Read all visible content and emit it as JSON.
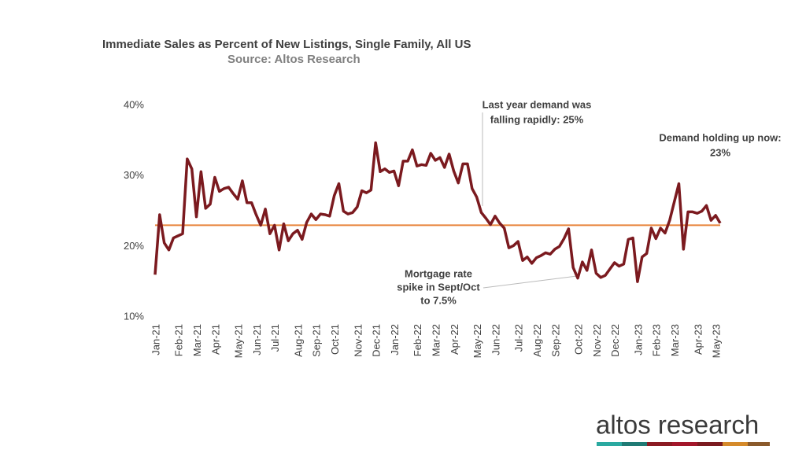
{
  "chart_data": {
    "type": "line",
    "title": "Immediate Sales as Percent of New Listings, Single Family, All US",
    "subtitle": "Source: Altos Research",
    "categories": [
      "Jan-21",
      null,
      null,
      null,
      null,
      "Feb-21",
      null,
      null,
      null,
      "Mar-21",
      null,
      null,
      null,
      "Apr-21",
      null,
      null,
      null,
      null,
      "May-21",
      null,
      null,
      null,
      "Jun-21",
      null,
      null,
      null,
      "Jul-21",
      null,
      null,
      null,
      null,
      "Aug-21",
      null,
      null,
      null,
      "Sep-21",
      null,
      null,
      null,
      "Oct-21",
      null,
      null,
      null,
      null,
      "Nov-21",
      null,
      null,
      null,
      "Dec-21",
      null,
      null,
      null,
      "Jan-22",
      null,
      null,
      null,
      null,
      "Feb-22",
      null,
      null,
      null,
      "Mar-22",
      null,
      null,
      null,
      "Apr-22",
      null,
      null,
      null,
      null,
      "May-22",
      null,
      null,
      null,
      "Jun-22",
      null,
      null,
      null,
      null,
      "Jul-22",
      null,
      null,
      null,
      "Aug-22",
      null,
      null,
      null,
      "Sep-22",
      null,
      null,
      null,
      null,
      "Oct-22",
      null,
      null,
      null,
      "Nov-22",
      null,
      null,
      null,
      "Dec-22",
      null,
      null,
      null,
      null,
      "Jan-23",
      null,
      null,
      null,
      "Feb-23",
      null,
      null,
      null,
      "Mar-23",
      null,
      null,
      null,
      null,
      "Apr-23",
      null,
      null,
      null,
      "May-23",
      null
    ],
    "values": [
      16,
      24.5,
      20.5,
      19.5,
      21.2,
      21.5,
      21.8,
      32.4,
      31,
      24.2,
      30.6,
      25.4,
      26,
      29.8,
      27.8,
      28.2,
      28.4,
      27.5,
      26.7,
      29.3,
      26.2,
      26.2,
      24.5,
      23,
      25.3,
      21.8,
      23,
      19.5,
      23.2,
      20.8,
      21.8,
      22.3,
      21,
      23.4,
      24.6,
      23.8,
      24.6,
      24.5,
      24.3,
      27.2,
      28.9,
      25,
      24.6,
      24.8,
      25.6,
      27.9,
      27.6,
      28,
      34.7,
      30.6,
      31,
      30.5,
      30.7,
      28.6,
      32.1,
      32.1,
      33.7,
      31.4,
      31.6,
      31.5,
      33.2,
      32.2,
      32.6,
      31.2,
      33.1,
      30.7,
      29,
      31.7,
      31.7,
      28.2,
      27,
      24.8,
      24,
      23.1,
      24.3,
      23.3,
      22.6,
      19.8,
      20.1,
      20.7,
      18,
      18.5,
      17.6,
      18.4,
      18.7,
      19.1,
      18.9,
      19.6,
      20,
      21.1,
      22.5,
      17,
      15.5,
      17.8,
      16.6,
      19.5,
      16.2,
      15.6,
      15.9,
      16.8,
      17.7,
      17.2,
      17.5,
      21,
      21.2,
      15,
      18.5,
      19,
      22.6,
      21.1,
      22.6,
      21.9,
      23.7,
      26.3,
      28.9,
      19.6,
      24.9,
      24.9,
      24.7,
      25,
      25.8,
      23.7,
      24.4,
      23.3
    ],
    "color": "#7b1a1f",
    "reference_line": 23,
    "reference_color": "#e8833a",
    "ylim": [
      10,
      40
    ],
    "yticks": [
      {
        "value": 10,
        "label": "10%"
      },
      {
        "value": 20,
        "label": "20%"
      },
      {
        "value": 30,
        "label": "30%"
      },
      {
        "value": 40,
        "label": "40%"
      }
    ],
    "grid": false,
    "annotations": [
      {
        "lines": [
          "Last year demand was",
          "falling rapidly: 25%"
        ]
      },
      {
        "lines": [
          "Demand holding up now:",
          "23%"
        ]
      },
      {
        "lines": [
          "Mortgage rate",
          "spike in Sept/Oct",
          "to 7.5%"
        ]
      }
    ],
    "logo": "altos research"
  }
}
